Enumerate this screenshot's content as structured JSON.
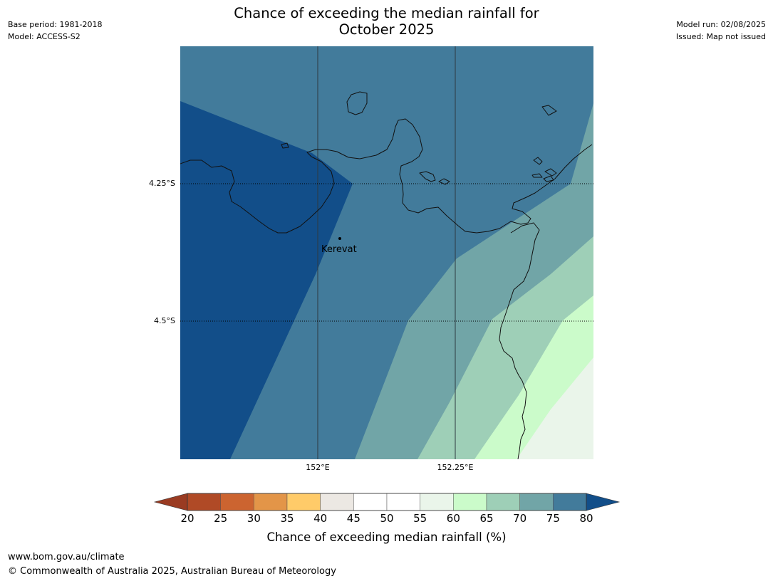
{
  "header": {
    "title_line1": "Chance of exceeding the median rainfall for",
    "title_line2": "October 2025",
    "base_period": "Base period: 1981-2018",
    "model": "Model: ACCESS-S2",
    "model_run": "Model run: 02/08/2025",
    "issued": "Issued: Map not issued"
  },
  "map": {
    "latitude_labels": [
      "4.25°S",
      "4.5°S"
    ],
    "longitude_labels": [
      "152°E",
      "152.25°E"
    ],
    "place_label": "Kerevat",
    "zone_colors": {
      "above_80": "#124e89",
      "75_80": "#427b9b",
      "70_75": "#71a5a7",
      "65_70": "#9ecfb7",
      "60_65": "#cbfbca",
      "55_60": "#eaf5ea"
    }
  },
  "colorbar": {
    "title": "Chance of exceeding median rainfall (%)",
    "ticks": [
      "20",
      "25",
      "30",
      "35",
      "40",
      "45",
      "50",
      "55",
      "60",
      "65",
      "70",
      "75",
      "80"
    ],
    "bins": [
      {
        "range": "20-25",
        "color": "#b04a26"
      },
      {
        "range": "25-30",
        "color": "#cc6430"
      },
      {
        "range": "30-35",
        "color": "#e39548"
      },
      {
        "range": "35-40",
        "color": "#ffcb69"
      },
      {
        "range": "40-45",
        "color": "#ece8e3"
      },
      {
        "range": "45-50",
        "color": "#ffffff"
      },
      {
        "range": "50-55",
        "color": "#ffffff"
      },
      {
        "range": "55-60",
        "color": "#eaf5ea"
      },
      {
        "range": "60-65",
        "color": "#cbfbca"
      },
      {
        "range": "65-70",
        "color": "#9ecfb7"
      },
      {
        "range": "70-75",
        "color": "#71a5a7"
      },
      {
        "range": "75-80",
        "color": "#427b9b"
      }
    ],
    "low_extend_color": "#9a3b22",
    "high_extend_color": "#124e89"
  },
  "footer": {
    "website": "www.bom.gov.au/climate",
    "copyright": "© Commonwealth of Australia 2025, Australian Bureau of Meteorology"
  }
}
